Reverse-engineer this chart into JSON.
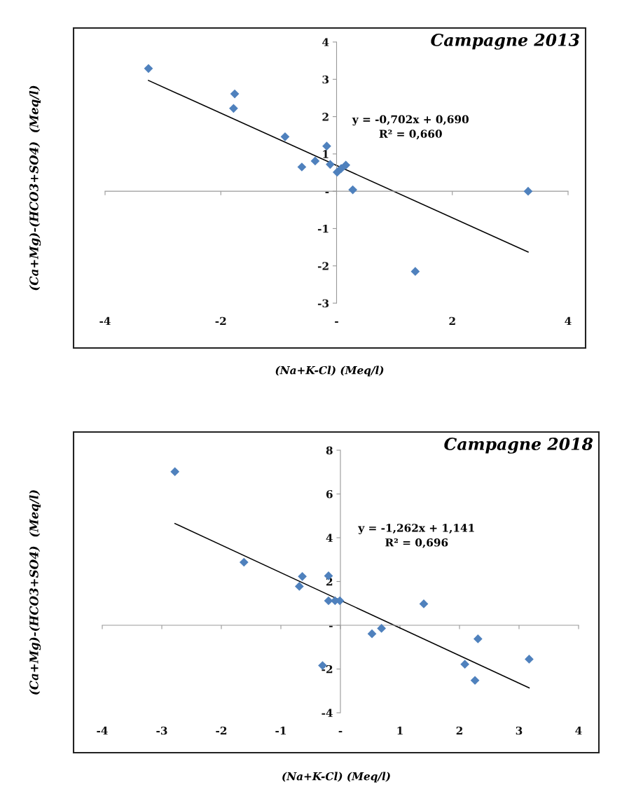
{
  "chart_data": [
    {
      "type": "scatter",
      "title": "Campagne 2013",
      "xlabel": "(Na+K-Cl) (Meq/l)",
      "ylabel": "(Ca+Mg)-(HCO3+SO4)  (Meq/l)",
      "xlim": [
        -4,
        4
      ],
      "ylim": [
        -3,
        4
      ],
      "xticks": [
        -4,
        -2,
        {
          "value": 0,
          "label": "-"
        },
        2,
        4
      ],
      "yticks": [
        -3,
        -2,
        -1,
        {
          "value": 0,
          "label": "-"
        },
        1,
        2,
        3,
        4
      ],
      "marker": "diamond",
      "series": [
        {
          "color": "#4f81bd",
          "x": [
            -3.25,
            -1.76,
            -1.78,
            -0.89,
            -0.17,
            -0.6,
            -0.37,
            -0.11,
            0.01,
            0.08,
            0.16,
            0.28,
            3.31,
            1.36
          ],
          "values": [
            3.29,
            2.61,
            2.22,
            1.46,
            1.21,
            0.65,
            0.81,
            0.72,
            0.51,
            0.61,
            0.7,
            0.04,
            0.0,
            -2.15
          ]
        },
        {
          "type": "line",
          "color": "#000000",
          "marker": "none",
          "x": [
            -3.25,
            3.31
          ],
          "values": [
            2.97,
            -1.63
          ]
        }
      ],
      "annotations": [
        "y = -0,702x + 0,690",
        "R² = 0,660"
      ]
    },
    {
      "type": "scatter",
      "title": "Campagne 2018",
      "xlabel": "(Na+K-Cl) (Meq/l)",
      "ylabel": "(Ca+Mg)-(HCO3+SO4)  (Meq/l)",
      "xlim": [
        -4,
        4
      ],
      "ylim": [
        -4,
        8
      ],
      "xticks": [
        -4,
        -3,
        -2,
        -1,
        {
          "value": 0,
          "label": "-"
        },
        1,
        2,
        3,
        4
      ],
      "yticks": [
        -4,
        -2,
        {
          "value": 0,
          "label": "-"
        },
        2,
        4,
        6,
        8
      ],
      "marker": "diamond",
      "series": [
        {
          "color": "#4f81bd",
          "x": [
            -2.78,
            -1.62,
            -0.64,
            -0.69,
            -0.2,
            -0.2,
            -0.09,
            -0.01,
            0.53,
            0.69,
            1.4,
            -0.3,
            2.31,
            2.09,
            2.26,
            3.17
          ],
          "values": [
            7.02,
            2.88,
            2.23,
            1.78,
            2.26,
            1.12,
            1.12,
            1.12,
            -0.39,
            -0.14,
            0.98,
            -1.84,
            -0.62,
            -1.78,
            -2.52,
            -1.55
          ]
        },
        {
          "type": "line",
          "color": "#000000",
          "marker": "none",
          "x": [
            -2.78,
            3.17
          ],
          "values": [
            4.65,
            -2.86
          ]
        }
      ],
      "annotations": [
        "y = -1,262x + 1,141",
        "R² = 0,696"
      ]
    }
  ]
}
